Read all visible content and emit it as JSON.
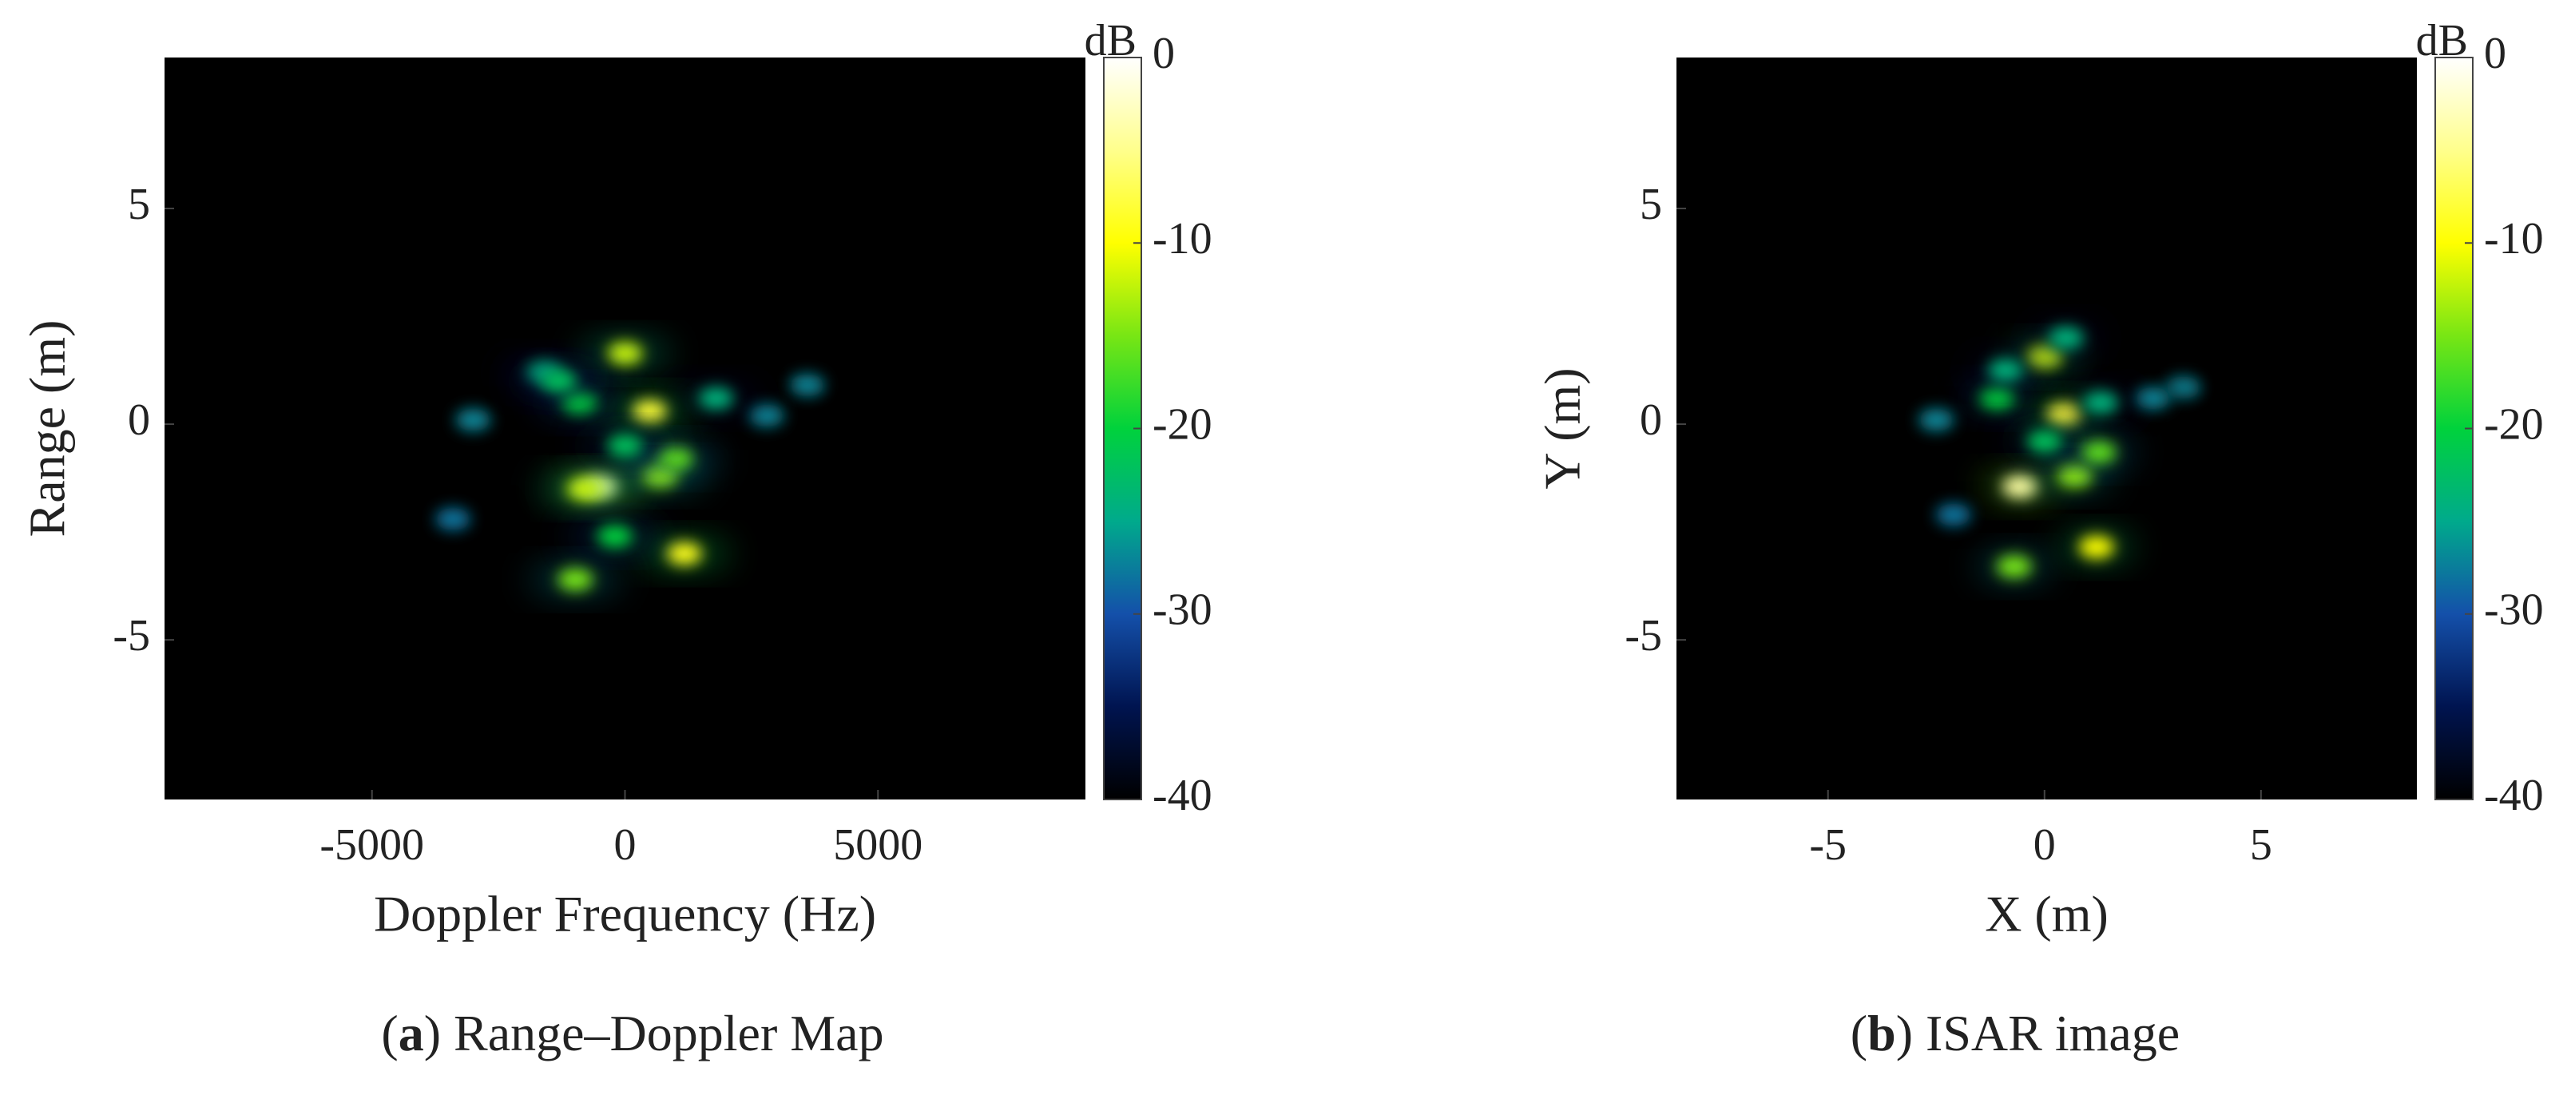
{
  "chart_data": [
    {
      "type": "heatmap",
      "x_label": "Doppler Frequency (Hz)",
      "y_label": "Range (m)",
      "xlim": [
        -9100,
        9100
      ],
      "ylim": [
        -8.7,
        8.5
      ],
      "xticks": [
        -5000,
        0,
        5000
      ],
      "yticks": [
        -5,
        0,
        5
      ],
      "colorbar_label": "dB",
      "clim": [
        -40,
        0
      ],
      "cticks": [
        -40,
        -30,
        -20,
        -10,
        0
      ],
      "caption": [
        "(",
        "a",
        ") Range–Doppler Map"
      ],
      "points": {
        "x": [
          -490,
          -800,
          490,
          1170,
          0,
          -980,
          700,
          1000,
          -900,
          -1600,
          -3000,
          -3400,
          3600,
          2800,
          1800,
          -1300,
          0,
          -200
        ],
        "y": [
          -1.45,
          -1.5,
          0.3,
          -3.0,
          1.64,
          -3.6,
          -1.2,
          -0.8,
          0.5,
          1.2,
          0.1,
          -2.2,
          0.9,
          0.2,
          0.6,
          1.0,
          -0.5,
          -2.6
        ],
        "values": [
          -4,
          -12,
          -8,
          -9,
          -12,
          -15,
          -14,
          -16,
          -20,
          -24,
          -27,
          -28,
          -27,
          -27,
          -24,
          -22,
          -22,
          -20
        ]
      }
    },
    {
      "type": "heatmap",
      "x_label": "X (m)",
      "y_label": "Y (m)",
      "xlim": [
        -8.5,
        8.6
      ],
      "ylim": [
        -8.7,
        8.5
      ],
      "xticks": [
        -5,
        0,
        5
      ],
      "yticks": [
        -5,
        0,
        5
      ],
      "colorbar_label": "dB",
      "clim": [
        -40,
        0
      ],
      "cticks": [
        -40,
        -30,
        -20,
        -10,
        0
      ],
      "caption": [
        "(",
        "b",
        ") ISAR image"
      ],
      "points": {
        "x": [
          -0.57,
          0.45,
          1.2,
          0,
          -0.7,
          0.7,
          1.25,
          -1.1,
          -0.9,
          -2.5,
          -2.1,
          3.2,
          2.5,
          1.3,
          0.5,
          0
        ],
        "y": [
          -1.45,
          0.23,
          -2.85,
          1.56,
          -3.3,
          -1.2,
          -0.65,
          0.6,
          1.25,
          0.1,
          -2.1,
          0.85,
          0.6,
          0.5,
          2.0,
          -0.4
        ],
        "values": [
          -4,
          -8,
          -10,
          -12,
          -15,
          -14,
          -16,
          -20,
          -24,
          -27,
          -28,
          -27,
          -27,
          -24,
          -24,
          -22
        ]
      }
    }
  ]
}
